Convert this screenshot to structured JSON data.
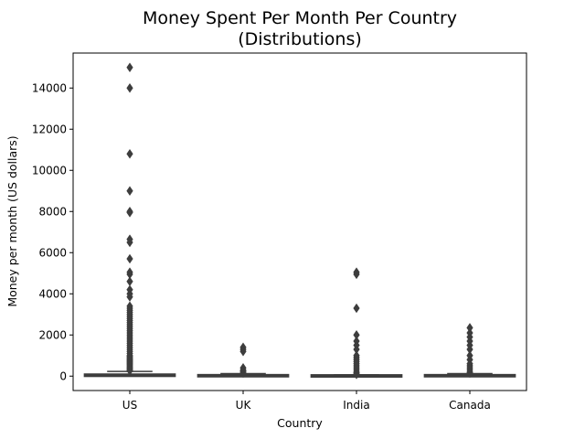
{
  "chart_data": {
    "type": "box",
    "title_lines": [
      "Money Spent Per Month Per Country",
      "(Distributions)"
    ],
    "xlabel": "Country",
    "ylabel": "Money per month (US dollars)",
    "categories": [
      "US",
      "UK",
      "India",
      "Canada"
    ],
    "ylim": [
      -700,
      15700
    ],
    "yticks": [
      0,
      2000,
      4000,
      6000,
      8000,
      10000,
      12000,
      14000
    ],
    "grid": false,
    "legend": "none",
    "box_color": "#3d3d3d",
    "boxes": [
      {
        "category": "US",
        "q1": 10,
        "median": 40,
        "q3": 100,
        "whisker_low": 0,
        "whisker_high": 230,
        "outliers": [
          15000,
          14000,
          10800,
          9000,
          8000,
          7950,
          6650,
          6500,
          5700,
          5050,
          4950,
          4600,
          4200,
          4000,
          3850,
          3400,
          3300,
          3200,
          3100,
          3000,
          2900,
          2800,
          2700,
          2600,
          2500,
          2400,
          2300,
          2200,
          2100,
          2000,
          1900,
          1800,
          1700,
          1600,
          1500,
          1400,
          1300,
          1200,
          1100,
          1000,
          950,
          900,
          850,
          800,
          750,
          700,
          650,
          600,
          550,
          500,
          450,
          400,
          350,
          300,
          260
        ]
      },
      {
        "category": "UK",
        "q1": 5,
        "median": 20,
        "q3": 60,
        "whisker_low": 0,
        "whisker_high": 120,
        "outliers": [
          1400,
          1300,
          1200,
          400,
          300,
          250,
          200,
          150
        ]
      },
      {
        "category": "India",
        "q1": 0,
        "median": 10,
        "q3": 30,
        "whisker_low": 0,
        "whisker_high": 60,
        "outliers": [
          5050,
          4950,
          3300,
          2000,
          1700,
          1500,
          1300,
          1000,
          900,
          800,
          700,
          600,
          500,
          400,
          300,
          200,
          150,
          100,
          80
        ]
      },
      {
        "category": "Canada",
        "q1": 5,
        "median": 20,
        "q3": 60,
        "whisker_low": 0,
        "whisker_high": 120,
        "outliers": [
          2350,
          2100,
          1900,
          1700,
          1500,
          1300,
          1000,
          800,
          600,
          500,
          400,
          300,
          200,
          150
        ]
      }
    ]
  }
}
